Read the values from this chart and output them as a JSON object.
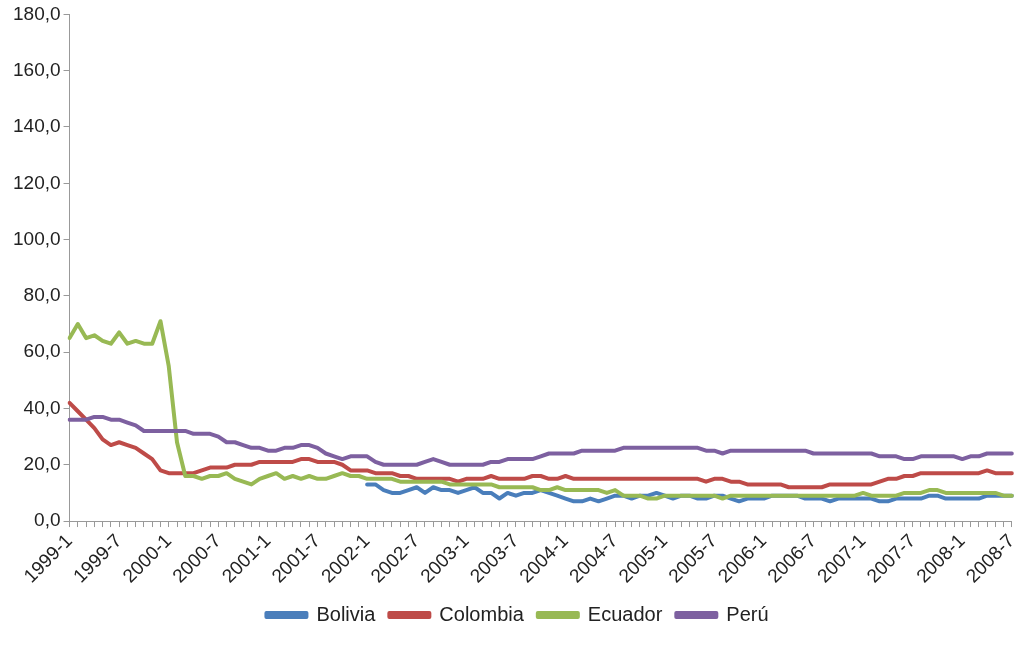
{
  "chart_data": {
    "type": "line",
    "categories": [
      "1999-1",
      null,
      null,
      null,
      null,
      null,
      "1999-7",
      null,
      null,
      null,
      null,
      null,
      "2000-1",
      null,
      null,
      null,
      null,
      null,
      "2000-7",
      null,
      null,
      null,
      null,
      null,
      "2001-1",
      null,
      null,
      null,
      null,
      null,
      "2001-7",
      null,
      null,
      null,
      null,
      null,
      "2002-1",
      null,
      null,
      null,
      null,
      null,
      "2002-7",
      null,
      null,
      null,
      null,
      null,
      "2003-1",
      null,
      null,
      null,
      null,
      null,
      "2003-7",
      null,
      null,
      null,
      null,
      null,
      "2004-1",
      null,
      null,
      null,
      null,
      null,
      "2004-7",
      null,
      null,
      null,
      null,
      null,
      "2005-1",
      null,
      null,
      null,
      null,
      null,
      "2005-7",
      null,
      null,
      null,
      null,
      null,
      "2006-1",
      null,
      null,
      null,
      null,
      null,
      "2006-7",
      null,
      null,
      null,
      null,
      null,
      "2007-1",
      null,
      null,
      null,
      null,
      null,
      "2007-7",
      null,
      null,
      null,
      null,
      null,
      "2008-1",
      null,
      null,
      null,
      null,
      null,
      "2008-7"
    ],
    "series": [
      {
        "name": "Bolivia",
        "color": "#4a7ebb",
        "values": [
          null,
          null,
          null,
          null,
          null,
          null,
          null,
          null,
          null,
          null,
          null,
          null,
          null,
          null,
          null,
          null,
          null,
          null,
          null,
          null,
          null,
          null,
          null,
          null,
          null,
          null,
          null,
          null,
          null,
          null,
          null,
          null,
          null,
          null,
          null,
          null,
          13,
          13,
          11,
          10,
          10,
          11,
          12,
          10,
          12,
          11,
          11,
          10,
          11,
          12,
          10,
          10,
          8,
          10,
          9,
          10,
          10,
          11,
          10,
          9,
          8,
          7,
          7,
          8,
          7,
          8,
          9,
          9,
          8,
          9,
          9,
          10,
          9,
          8,
          9,
          9,
          8,
          8,
          9,
          9,
          8,
          7,
          8,
          8,
          8,
          9,
          9,
          9,
          9,
          8,
          8,
          8,
          7,
          8,
          8,
          8,
          8,
          8,
          7,
          7,
          8,
          8,
          8,
          8,
          9,
          9,
          8,
          8,
          8,
          8,
          8,
          9,
          9,
          9,
          9
        ]
      },
      {
        "name": "Colombia",
        "color": "#be4b48",
        "values": [
          42,
          39,
          36,
          33,
          29,
          27,
          28,
          27,
          26,
          24,
          22,
          18,
          17,
          17,
          17,
          17,
          18,
          19,
          19,
          19,
          20,
          20,
          20,
          21,
          21,
          21,
          21,
          21,
          22,
          22,
          21,
          21,
          21,
          20,
          18,
          18,
          18,
          17,
          17,
          17,
          16,
          16,
          15,
          15,
          15,
          15,
          15,
          14,
          15,
          15,
          15,
          16,
          15,
          15,
          15,
          15,
          16,
          16,
          15,
          15,
          16,
          15,
          15,
          15,
          15,
          15,
          15,
          15,
          15,
          15,
          15,
          15,
          15,
          15,
          15,
          15,
          15,
          14,
          15,
          15,
          14,
          14,
          13,
          13,
          13,
          13,
          13,
          12,
          12,
          12,
          12,
          12,
          13,
          13,
          13,
          13,
          13,
          13,
          14,
          15,
          15,
          16,
          16,
          17,
          17,
          17,
          17,
          17,
          17,
          17,
          17,
          18,
          17,
          17,
          17
        ]
      },
      {
        "name": "Ecuador",
        "color": "#98b954",
        "values": [
          65,
          70,
          65,
          66,
          64,
          63,
          67,
          63,
          64,
          63,
          63,
          71,
          55,
          28,
          16,
          16,
          15,
          16,
          16,
          17,
          15,
          14,
          13,
          15,
          16,
          17,
          15,
          16,
          15,
          16,
          15,
          15,
          16,
          17,
          16,
          16,
          15,
          15,
          15,
          15,
          14,
          14,
          14,
          14,
          14,
          14,
          13,
          13,
          13,
          13,
          13,
          13,
          12,
          12,
          12,
          12,
          12,
          11,
          11,
          12,
          11,
          11,
          11,
          11,
          11,
          10,
          11,
          9,
          9,
          9,
          8,
          8,
          9,
          9,
          9,
          9,
          9,
          9,
          9,
          8,
          9,
          9,
          9,
          9,
          9,
          9,
          9,
          9,
          9,
          9,
          9,
          9,
          9,
          9,
          9,
          9,
          10,
          9,
          9,
          9,
          9,
          10,
          10,
          10,
          11,
          11,
          10,
          10,
          10,
          10,
          10,
          10,
          10,
          9,
          9
        ]
      },
      {
        "name": "Perú",
        "color": "#7d60a0",
        "values": [
          36,
          36,
          36,
          37,
          37,
          36,
          36,
          35,
          34,
          32,
          32,
          32,
          32,
          32,
          32,
          31,
          31,
          31,
          30,
          28,
          28,
          27,
          26,
          26,
          25,
          25,
          26,
          26,
          27,
          27,
          26,
          24,
          23,
          22,
          23,
          23,
          23,
          21,
          20,
          20,
          20,
          20,
          20,
          21,
          22,
          21,
          20,
          20,
          20,
          20,
          20,
          21,
          21,
          22,
          22,
          22,
          22,
          23,
          24,
          24,
          24,
          24,
          25,
          25,
          25,
          25,
          25,
          26,
          26,
          26,
          26,
          26,
          26,
          26,
          26,
          26,
          26,
          25,
          25,
          24,
          25,
          25,
          25,
          25,
          25,
          25,
          25,
          25,
          25,
          25,
          24,
          24,
          24,
          24,
          24,
          24,
          24,
          24,
          23,
          23,
          23,
          22,
          22,
          23,
          23,
          23,
          23,
          23,
          22,
          23,
          23,
          24,
          24,
          24,
          24
        ]
      }
    ],
    "ylim": [
      0,
      180
    ],
    "yticks": [
      {
        "value": 0,
        "label": "0,0"
      },
      {
        "value": 20,
        "label": "20,0"
      },
      {
        "value": 40,
        "label": "40,0"
      },
      {
        "value": 60,
        "label": "60,0"
      },
      {
        "value": 80,
        "label": "80,0"
      },
      {
        "value": 100,
        "label": "100,0"
      },
      {
        "value": 120,
        "label": "120,0"
      },
      {
        "value": 140,
        "label": "140,0"
      },
      {
        "value": 160,
        "label": "160,0"
      },
      {
        "value": 180,
        "label": "180,0"
      }
    ],
    "grid": false,
    "legend": "bottom",
    "marker": "none",
    "line_style": "solid"
  }
}
